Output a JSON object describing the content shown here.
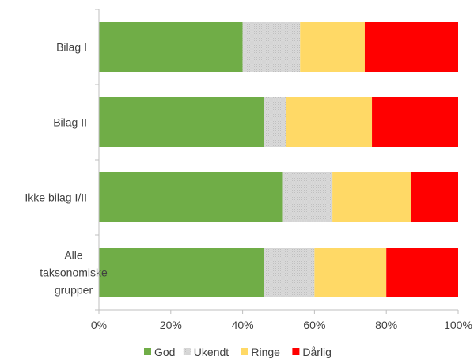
{
  "chart_data": {
    "type": "bar",
    "orientation": "horizontal",
    "stacked": true,
    "percent_stacked": true,
    "categories": [
      "Bilag I",
      "Bilag II",
      "Ikke bilag I/II",
      "Alle taksonomiske grupper"
    ],
    "category_lines": [
      [
        "Bilag I"
      ],
      [
        "Bilag II"
      ],
      [
        "Ikke bilag I/II"
      ],
      [
        "Alle",
        "taksonomiske",
        "grupper"
      ]
    ],
    "series": [
      {
        "name": "God",
        "color": "#70ad47",
        "pattern": "solid",
        "values": [
          40,
          46,
          51,
          46
        ]
      },
      {
        "name": "Ukendt",
        "color": "#d9d9d9",
        "pattern": "dotted-gray",
        "values": [
          16,
          6,
          14,
          14
        ]
      },
      {
        "name": "Ringe",
        "color": "#ffd966",
        "pattern": "solid",
        "values": [
          18,
          24,
          22,
          20
        ]
      },
      {
        "name": "Dårlig",
        "color": "#ff0000",
        "pattern": "solid",
        "values": [
          26,
          24,
          13,
          20
        ]
      }
    ],
    "x_ticks": [
      "0%",
      "20%",
      "40%",
      "60%",
      "80%",
      "100%"
    ],
    "xlim": [
      0,
      100
    ],
    "grid": false,
    "legend_position": "bottom",
    "title": "",
    "xlabel": "",
    "ylabel": ""
  }
}
